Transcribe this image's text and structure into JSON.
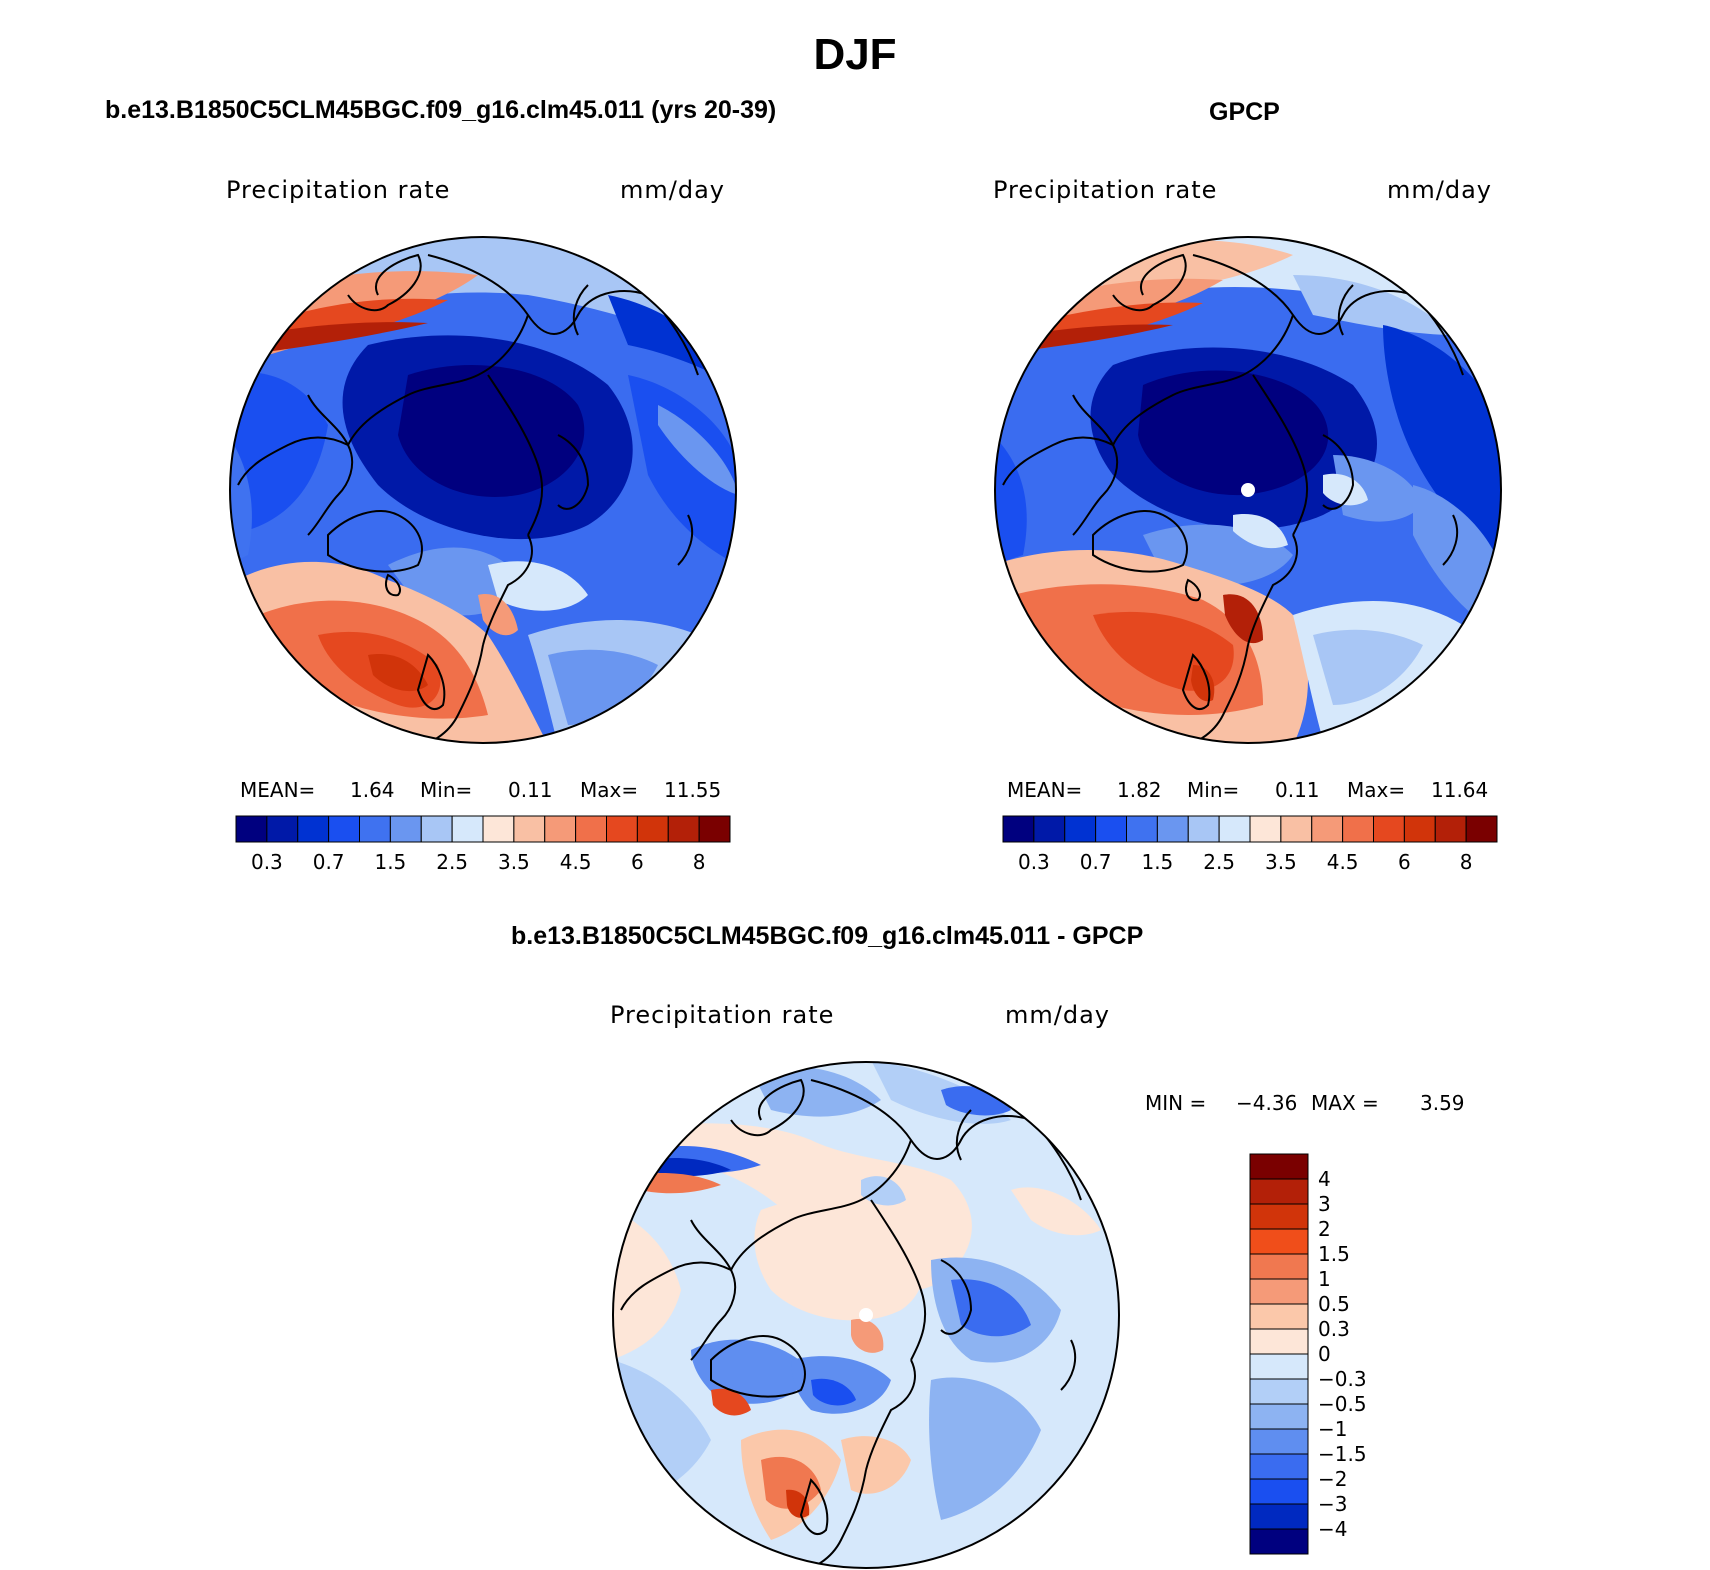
{
  "title": "DJF",
  "panels": [
    {
      "id": "model",
      "title": "b.e13.B1850C5CLM45BGC.f09_g16.clm45.011 (yrs 20-39)",
      "variable": "Precipitation rate",
      "units": "mm/day",
      "stats": {
        "mean_label": "MEAN=",
        "mean": "1.64",
        "min_label": "Min=",
        "min": "0.11",
        "max_label": "Max=",
        "max": "11.55"
      }
    },
    {
      "id": "obs",
      "title": "GPCP",
      "variable": "Precipitation rate",
      "units": "mm/day",
      "stats": {
        "mean_label": "MEAN=",
        "mean": "1.82",
        "min_label": "Min=",
        "min": "0.11",
        "max_label": "Max=",
        "max": "11.64"
      }
    },
    {
      "id": "diff",
      "title": "b.e13.B1850C5CLM45BGC.f09_g16.clm45.011 - GPCP",
      "variable": "Precipitation rate",
      "units": "mm/day",
      "stats": {
        "min_label": "MIN =",
        "min": "−4.36",
        "max_label": "MAX =",
        "max": "3.59"
      }
    }
  ],
  "colorbar_precip": {
    "colors": [
      "#00007f",
      "#0019a8",
      "#0032d2",
      "#1a4ff0",
      "#3f72f0",
      "#6a96f0",
      "#a8c6f5",
      "#d6e8fb",
      "#fde6d8",
      "#f9c0a4",
      "#f59a78",
      "#f0704a",
      "#e5481f",
      "#d1340a",
      "#b32008",
      "#7a0000"
    ],
    "tick_labels": [
      "0.3",
      "0.7",
      "1.5",
      "2.5",
      "3.5",
      "4.5",
      "6",
      "8"
    ]
  },
  "colorbar_diff": {
    "colors": [
      "#7a0000",
      "#b32008",
      "#d1340a",
      "#f04e1a",
      "#f07850",
      "#f59a78",
      "#fbc8aa",
      "#fde6d8",
      "#d6e8fb",
      "#b2cff7",
      "#8db3f2",
      "#5f8ef0",
      "#3a6cf0",
      "#1a4ff0",
      "#0029c0",
      "#00007f"
    ],
    "tick_labels": [
      "4",
      "3",
      "2",
      "1.5",
      "1",
      "0.5",
      "0.3",
      "0",
      "−0.3",
      "−0.5",
      "−1",
      "−1.5",
      "−2",
      "−3",
      "−4"
    ]
  }
}
